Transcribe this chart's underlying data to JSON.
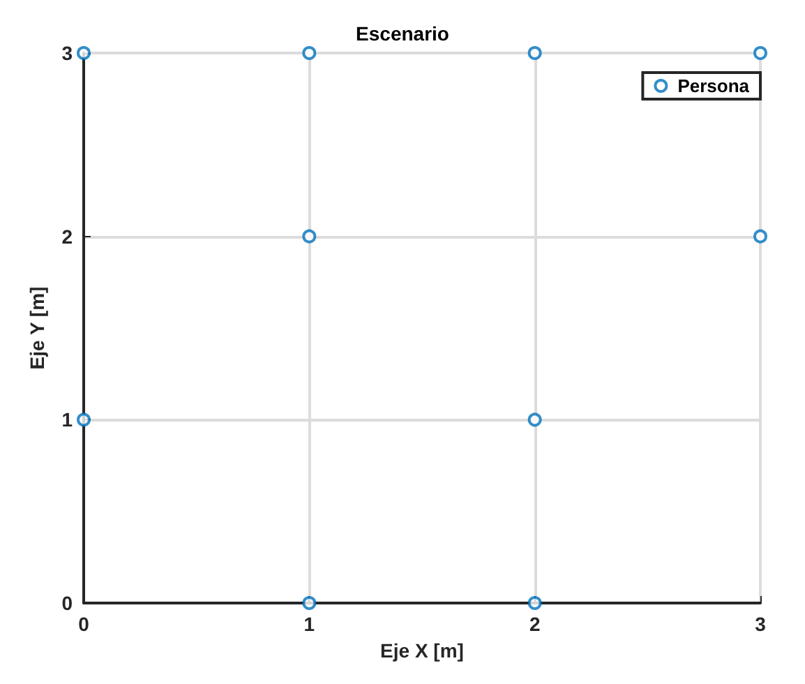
{
  "chart_data": {
    "type": "scatter",
    "title": "Escenario",
    "xlabel": "Eje X [m]",
    "ylabel": "Eje Y [m]",
    "x": [
      0,
      1,
      2,
      3,
      1,
      3,
      0,
      2,
      1,
      2
    ],
    "series": [
      {
        "name": "Persona",
        "color": "#0072bd",
        "values": [
          3,
          3,
          3,
          3,
          2,
          2,
          1,
          1,
          0,
          0
        ]
      }
    ],
    "xlim": [
      0,
      3
    ],
    "ylim": [
      0,
      3
    ],
    "xticks": [
      0,
      1,
      2,
      3
    ],
    "yticks": [
      0,
      1,
      2,
      3
    ],
    "grid": true,
    "legend": "top right",
    "marker": "circle"
  }
}
